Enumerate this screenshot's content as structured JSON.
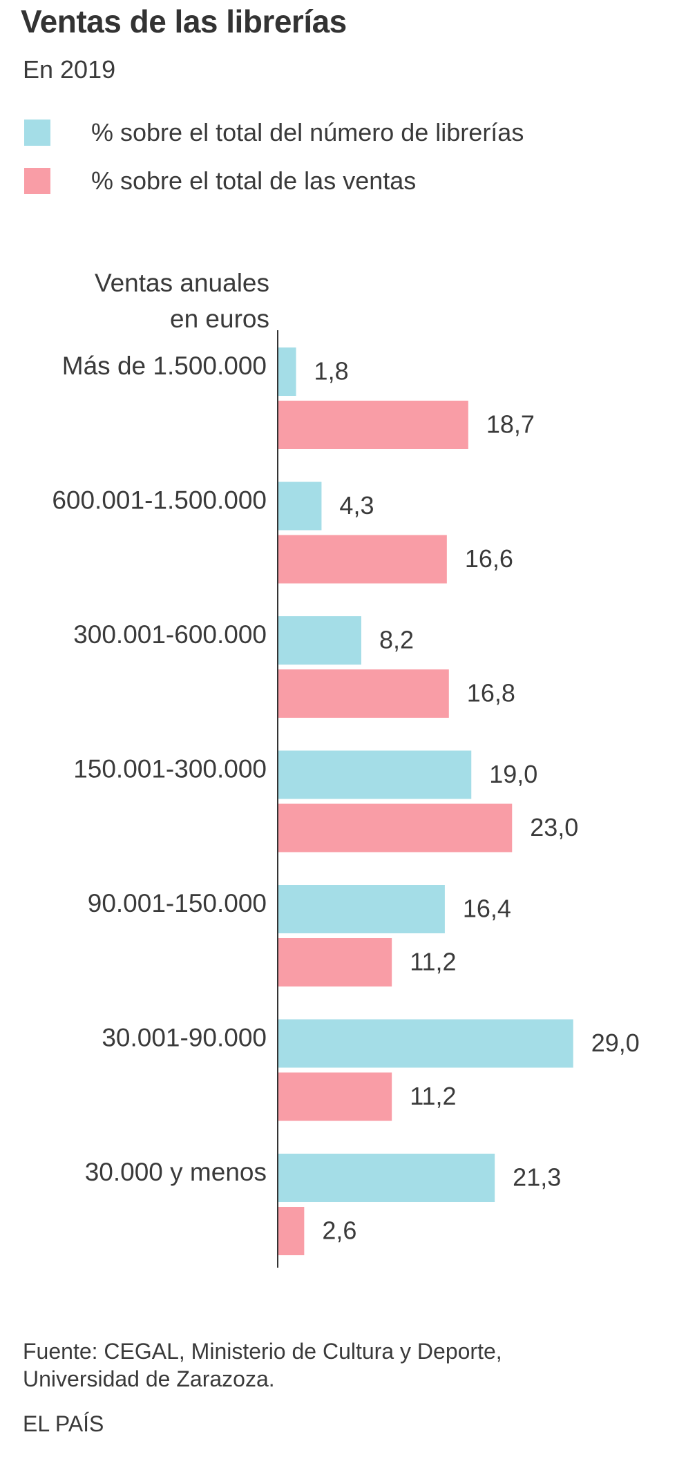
{
  "header": {
    "title": "Ventas de las librerías",
    "subtitle": "En 2019"
  },
  "legend": [
    {
      "label": "% sobre el total del número de librerías",
      "color": "#a4dde7"
    },
    {
      "label": "% sobre el total de las ventas",
      "color": "#f99da6"
    }
  ],
  "axis_header": {
    "line1": "Ventas anuales",
    "line2": "en euros"
  },
  "chart_data": {
    "type": "bar",
    "orientation": "horizontal",
    "title": "Ventas de las librerías",
    "subtitle": "En 2019",
    "ylabel": "Ventas anuales en euros",
    "xlabel": "",
    "categories": [
      "Más de 1.500.000",
      "600.001-1.500.000",
      "300.001-600.000",
      "150.001-300.000",
      "90.001-150.000",
      "30.001-90.000",
      "30.000 y menos"
    ],
    "series": [
      {
        "name": "% sobre el total del número de librerías",
        "color": "#a4dde7",
        "values": [
          1.8,
          4.3,
          8.2,
          19.0,
          16.4,
          29.0,
          21.3
        ],
        "labels": [
          "1,8",
          "4,3",
          "8,2",
          "19,0",
          "16,4",
          "29,0",
          "21,3"
        ]
      },
      {
        "name": "% sobre el total de las ventas",
        "color": "#f99da6",
        "values": [
          18.7,
          16.6,
          16.8,
          23.0,
          11.2,
          11.2,
          2.6
        ],
        "labels": [
          "18,7",
          "16,6",
          "16,8",
          "23,0",
          "11,2",
          "11,2",
          "2,6"
        ]
      }
    ],
    "xlim": [
      0,
      29
    ],
    "grid": false,
    "legend_position": "top-left"
  },
  "footer": {
    "source_line1": "Fuente: CEGAL, Ministerio de Cultura y Deporte,",
    "source_line2": "Universidad de Zarazoza.",
    "brand": "EL PAÍS"
  }
}
